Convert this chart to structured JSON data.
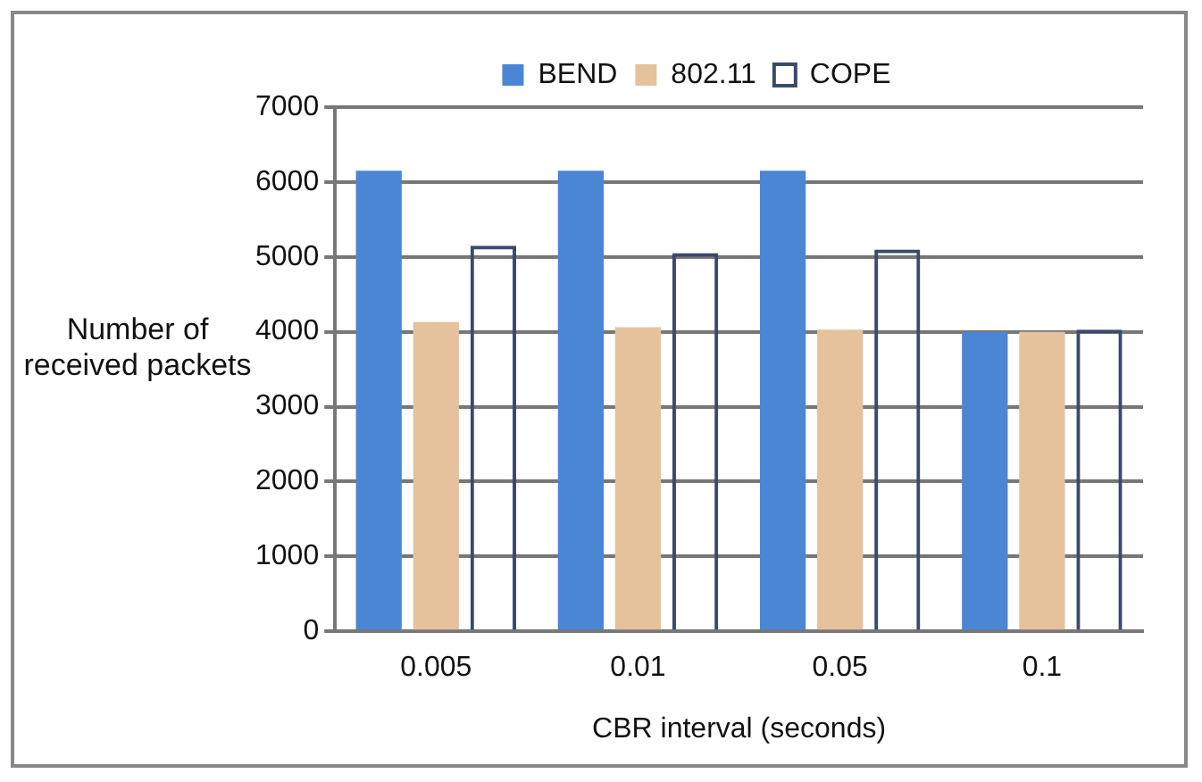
{
  "chart_data": {
    "type": "bar",
    "xlabel": "CBR interval (seconds)",
    "ylabel": "Number of received packets",
    "categories": [
      "0.005",
      "0.01",
      "0.05",
      "0.1"
    ],
    "series": [
      {
        "name": "BEND",
        "color": "#4a86d4",
        "values": [
          6150,
          6150,
          6150,
          4000
        ]
      },
      {
        "name": "802.11",
        "color": "#e6c29c",
        "values": [
          4130,
          4060,
          4030,
          4000
        ]
      },
      {
        "name": "COPE",
        "color": "#3a4a6a",
        "values": [
          5150,
          5050,
          5100,
          4030
        ]
      }
    ],
    "ylim": [
      0,
      7000
    ],
    "yticks": [
      0,
      1000,
      2000,
      3000,
      4000,
      5000,
      6000,
      7000
    ],
    "grid": "y",
    "legend": "top"
  }
}
